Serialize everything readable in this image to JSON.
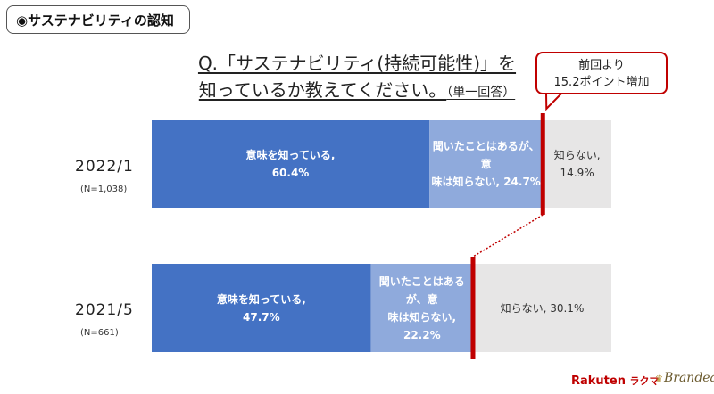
{
  "section_tag": "◉サステナビリティの認知",
  "question": {
    "line1": "Q.「サステナビリティ(持続可能性)」を",
    "line2": "知っているか教えてください。",
    "note": "（単一回答）"
  },
  "callout": {
    "line1": "前回より",
    "line2": "15.2ポイント増加"
  },
  "chart_data": {
    "type": "bar",
    "orientation": "horizontal",
    "stacked": true,
    "xlim": [
      0,
      100
    ],
    "categories": [
      "2022/1",
      "2021/5"
    ],
    "sample_sizes": [
      "(N=1,038)",
      "(N=661)"
    ],
    "series": [
      {
        "values": [
          60.4,
          47.7
        ],
        "labels": [
          [
            "意味を知っている,",
            "60.4%"
          ],
          [
            "意味を知っている,",
            "47.7%"
          ]
        ],
        "color": "#4472c4"
      },
      {
        "values": [
          24.7,
          22.2
        ],
        "labels": [
          [
            "聞いたことはあるが、意",
            "味は知らない, 24.7%"
          ],
          [
            "聞いたことはあるが、意",
            "味は知らない, 22.2%"
          ]
        ],
        "color": "#8faadc"
      },
      {
        "values": [
          14.9,
          30.1
        ],
        "labels": [
          [
            "知らない, 14.9%"
          ],
          [
            "知らない, 30.1%"
          ]
        ],
        "color": "#e7e6e6"
      }
    ],
    "marker_color": "#c00000",
    "connector_style": "dotted",
    "legend": "none",
    "grid": false
  },
  "logos": {
    "rakuten": "Rakuten",
    "rakuten_kana": "ラクマ",
    "brandear": "Brandear"
  }
}
